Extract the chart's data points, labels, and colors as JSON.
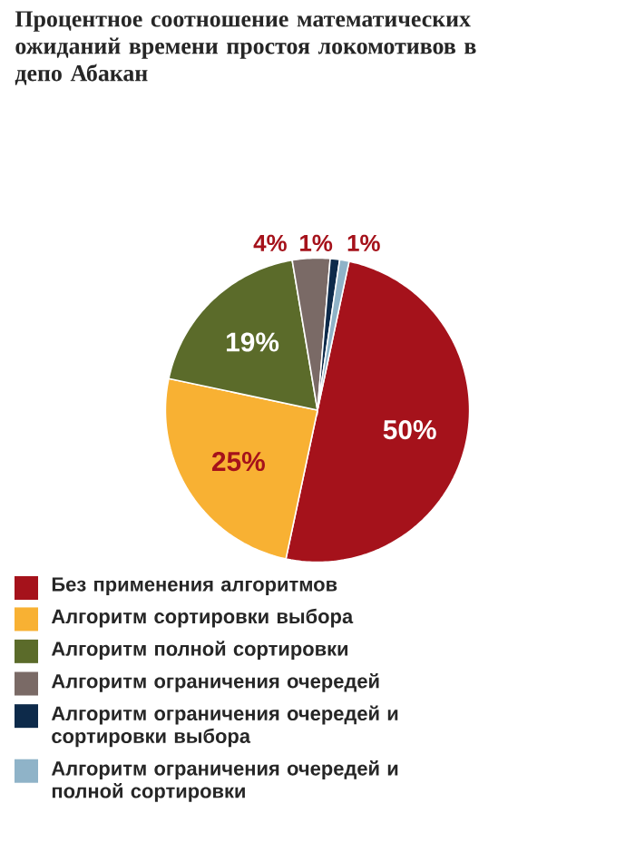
{
  "chart_data": {
    "type": "pie",
    "title": "Процентное соотношение математических ожиданий времени простоя локомотивов в депо Абакан",
    "categories": [
      "Без применения алгоритмов",
      "Алгоритм сортировки выбора",
      "Алгоритм полной сортировки",
      "Алгоритм ограничения очередей",
      "Алгоритм ограничения очередей и сортировки выбора",
      "Алгоритм ограничения очередей и полной сортировки"
    ],
    "values": [
      50,
      25,
      19,
      4,
      1,
      1
    ],
    "value_labels": [
      "50%",
      "25%",
      "19%",
      "4%",
      "1%",
      "1%"
    ],
    "colors": [
      "#a5121b",
      "#f8b133",
      "#5b6b2a",
      "#7a6a66",
      "#0d2a4a",
      "#8fb3c8"
    ],
    "legend": "bottom"
  }
}
